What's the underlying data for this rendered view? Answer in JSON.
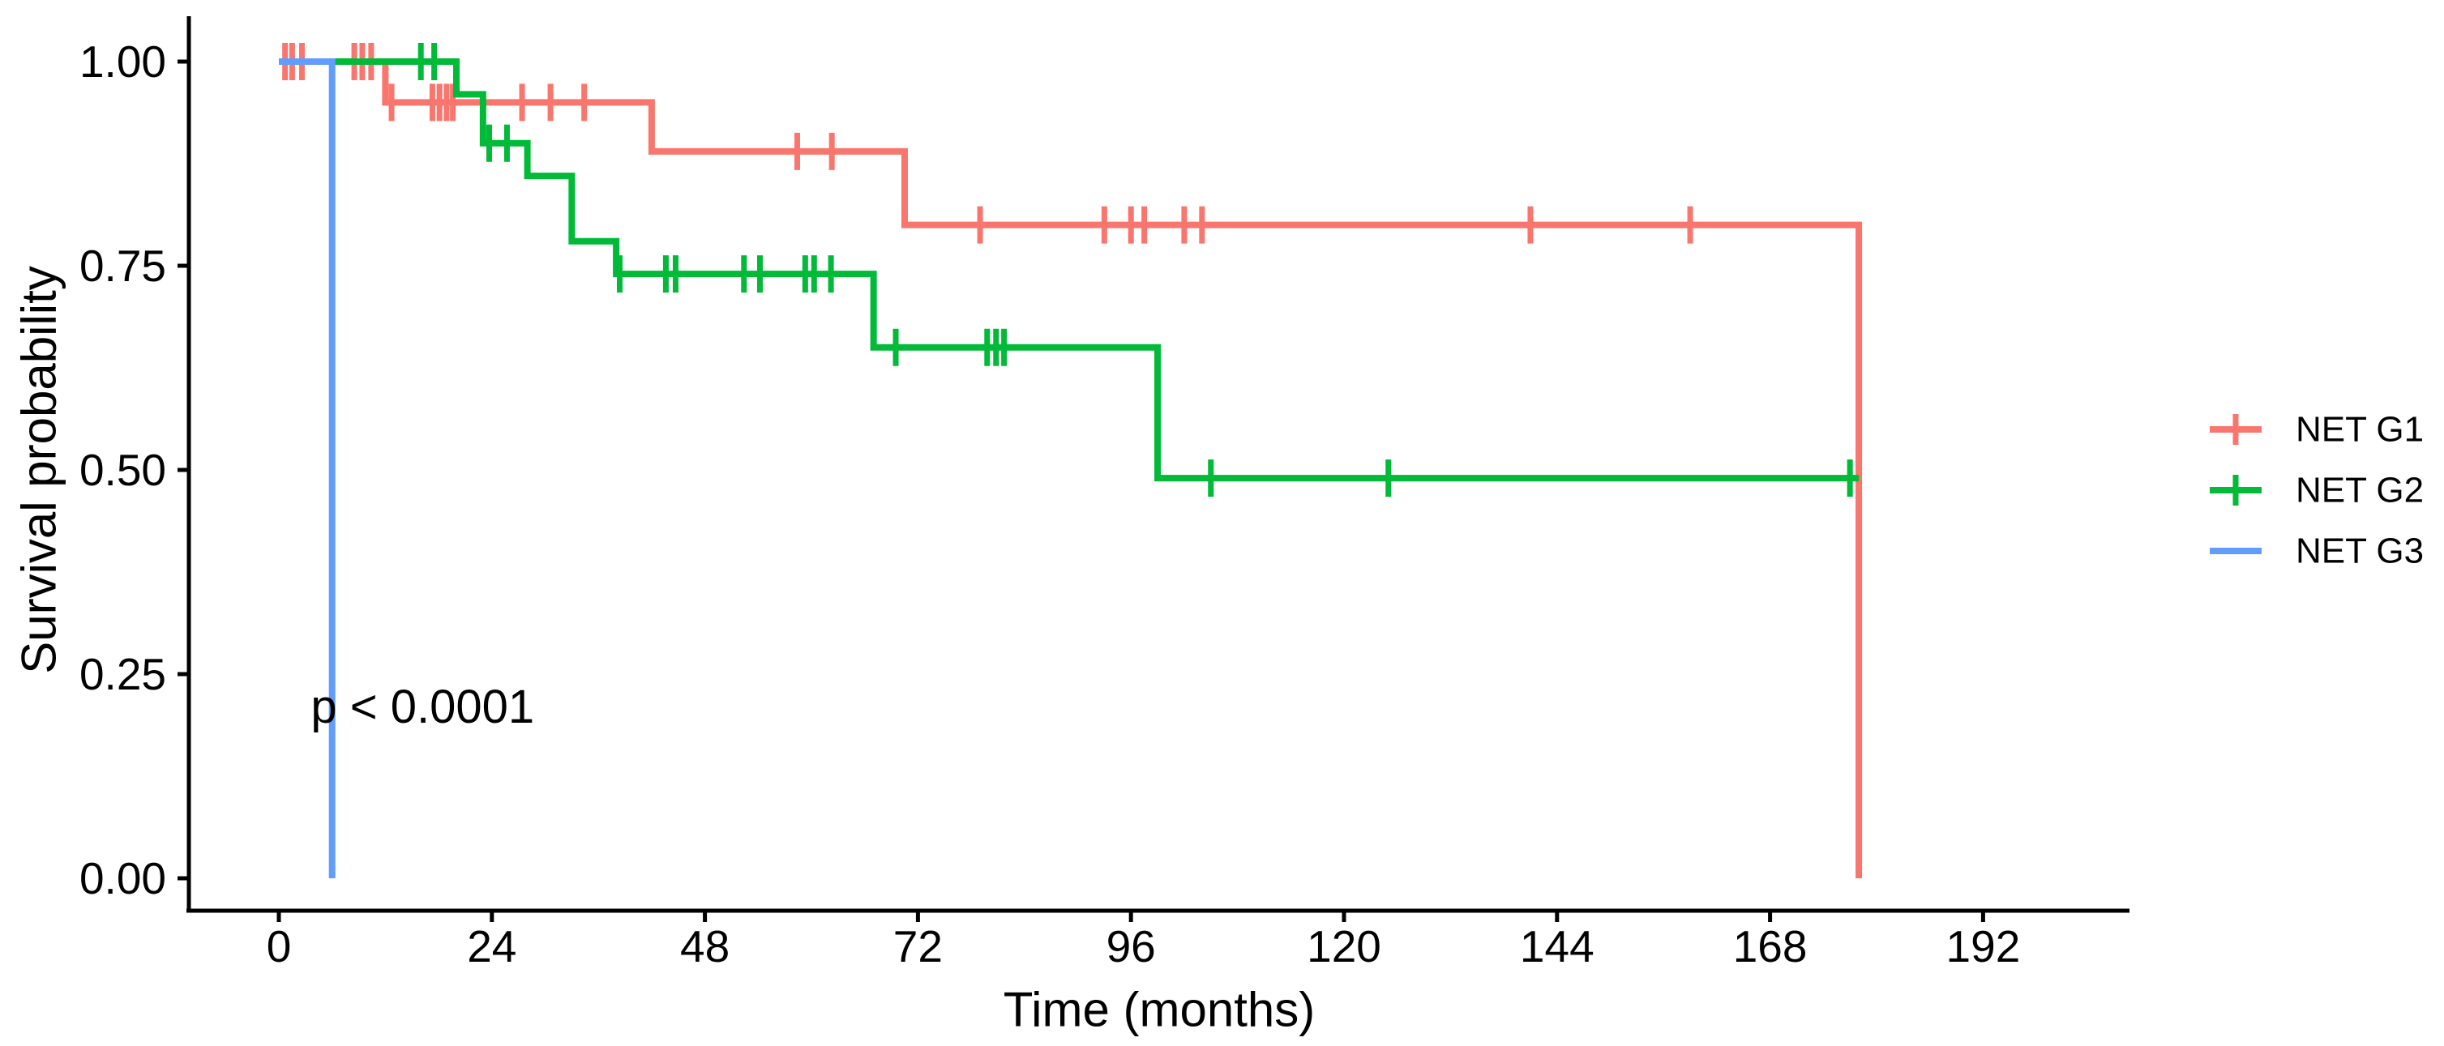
{
  "chart_data": {
    "type": "line",
    "subtype": "kaplan_meier_step",
    "title": "",
    "xlabel": "Time (months)",
    "ylabel": "Survival probability",
    "xlim": [
      -10,
      208
    ],
    "ylim": [
      0,
      1.05
    ],
    "grid": false,
    "legend_position": "right-middle",
    "p_value": {
      "text": "p < 0.0001",
      "t": 3.6,
      "p": 0.21
    },
    "x_ticks": [
      {
        "v": 0,
        "label": "0"
      },
      {
        "v": 24,
        "label": "24"
      },
      {
        "v": 48,
        "label": "48"
      },
      {
        "v": 72,
        "label": "72"
      },
      {
        "v": 96,
        "label": "96"
      },
      {
        "v": 120,
        "label": "120"
      },
      {
        "v": 144,
        "label": "144"
      },
      {
        "v": 168,
        "label": "168"
      },
      {
        "v": 192,
        "label": "192"
      }
    ],
    "y_ticks": [
      {
        "v": 0,
        "label": "0.00"
      },
      {
        "v": 0.25,
        "label": "0.25"
      },
      {
        "v": 0.5,
        "label": "0.50"
      },
      {
        "v": 0.75,
        "label": "0.75"
      },
      {
        "v": 1,
        "label": "1.00"
      }
    ],
    "series": [
      {
        "name": "NET G1",
        "color": "#F8766D",
        "legend_censor_cross": true,
        "steps": [
          [
            0,
            1
          ],
          [
            12,
            1
          ],
          [
            12,
            0.95
          ],
          [
            42,
            0.95
          ],
          [
            42,
            0.89
          ],
          [
            70.5,
            0.89
          ],
          [
            70.5,
            0.8
          ],
          [
            178,
            0.8
          ],
          [
            178,
            0
          ]
        ],
        "censors": [
          [
            0.7,
            1
          ],
          [
            1.5,
            1
          ],
          [
            2.6,
            1
          ],
          [
            8.5,
            1
          ],
          [
            9.4,
            1
          ],
          [
            10.4,
            1
          ],
          [
            12.7,
            0.95
          ],
          [
            17.3,
            0.95
          ],
          [
            18.1,
            0.95
          ],
          [
            18.9,
            0.95
          ],
          [
            19.6,
            0.95
          ],
          [
            27.4,
            0.95
          ],
          [
            30.6,
            0.95
          ],
          [
            34.4,
            0.95
          ],
          [
            58.4,
            0.89
          ],
          [
            62.3,
            0.89
          ],
          [
            79,
            0.8
          ],
          [
            93,
            0.8
          ],
          [
            96,
            0.8
          ],
          [
            97.5,
            0.8
          ],
          [
            102,
            0.8
          ],
          [
            104,
            0.8
          ],
          [
            141,
            0.8
          ],
          [
            159,
            0.8
          ]
        ]
      },
      {
        "name": "NET G2",
        "color": "#00BA38",
        "legend_censor_cross": true,
        "steps": [
          [
            0,
            1
          ],
          [
            20,
            1
          ],
          [
            20,
            0.96
          ],
          [
            23,
            0.96
          ],
          [
            23,
            0.9
          ],
          [
            28,
            0.9
          ],
          [
            28,
            0.86
          ],
          [
            33,
            0.86
          ],
          [
            33,
            0.78
          ],
          [
            38,
            0.78
          ],
          [
            38,
            0.74
          ],
          [
            67,
            0.74
          ],
          [
            67,
            0.65
          ],
          [
            99,
            0.65
          ],
          [
            99,
            0.49
          ],
          [
            178,
            0.49
          ]
        ],
        "censors": [
          [
            16,
            1
          ],
          [
            17.5,
            1
          ],
          [
            23.7,
            0.9
          ],
          [
            25.7,
            0.9
          ],
          [
            38.4,
            0.74
          ],
          [
            43.6,
            0.74
          ],
          [
            44.7,
            0.74
          ],
          [
            52.4,
            0.74
          ],
          [
            54.2,
            0.74
          ],
          [
            59.3,
            0.74
          ],
          [
            60.3,
            0.74
          ],
          [
            62.2,
            0.74
          ],
          [
            69.5,
            0.65
          ],
          [
            79.8,
            0.65
          ],
          [
            80.8,
            0.65
          ],
          [
            81.7,
            0.65
          ],
          [
            105,
            0.49
          ],
          [
            125,
            0.49
          ],
          [
            177,
            0.49
          ]
        ]
      },
      {
        "name": "NET G3",
        "color": "#619CFF",
        "legend_censor_cross": false,
        "steps": [
          [
            0,
            1
          ],
          [
            6,
            1
          ],
          [
            6,
            0
          ]
        ],
        "censors": []
      }
    ]
  }
}
